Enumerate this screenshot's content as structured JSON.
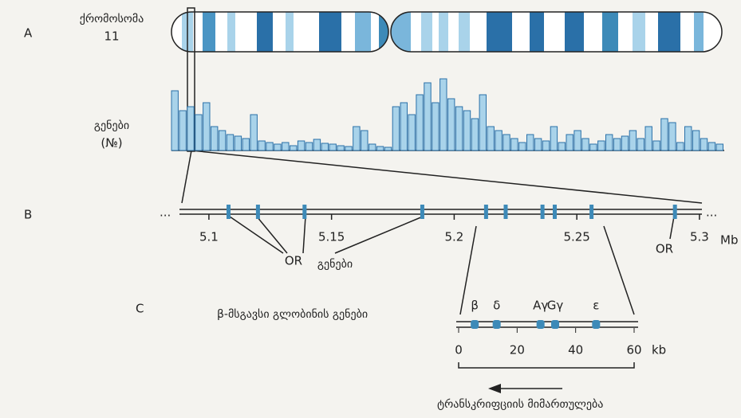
{
  "panel_labels": [
    "A",
    "B",
    "C"
  ],
  "chromosome": {
    "label_line1": "ქრომოსომა",
    "label_line2": "11"
  },
  "gene_density": {
    "label_line1": "გენები",
    "label_line2": "(№)",
    "values": [
      75,
      50,
      55,
      45,
      60,
      30,
      25,
      20,
      18,
      15,
      45,
      12,
      10,
      8,
      10,
      6,
      12,
      10,
      14,
      9,
      8,
      6,
      5,
      30,
      25,
      8,
      5,
      4,
      55,
      60,
      45,
      70,
      85,
      60,
      90,
      65,
      55,
      50,
      40,
      70,
      30,
      25,
      20,
      15,
      10,
      20,
      15,
      12,
      30,
      10,
      20,
      25,
      15,
      8,
      12,
      20,
      15,
      18,
      25,
      15,
      30,
      12,
      40,
      35,
      10,
      30,
      25,
      15,
      10,
      8
    ]
  },
  "region": {
    "xlim": [
      5.088,
      5.301
    ],
    "xticks": [
      5.1,
      5.15,
      5.2,
      5.25,
      5.3
    ],
    "unit": "Mb",
    "ellipsis": "...",
    "genes": [
      5.108,
      5.12,
      5.139,
      5.187,
      5.213,
      5.221,
      5.236,
      5.241,
      5.256,
      5.29
    ],
    "or_label": "OR",
    "genes_label": "გენები"
  },
  "globin": {
    "title": "β-მსგავსი გლობინის გენები",
    "xlim": [
      0,
      60
    ],
    "xticks": [
      0,
      20,
      40,
      60
    ],
    "unit": "kb",
    "genes": [
      5.5,
      13,
      28,
      33,
      47
    ],
    "gene_names": [
      "β",
      "δ",
      "Aγ",
      "Gγ",
      "ε"
    ],
    "direction_label": "ტრანსკრიფციის მიმართულება"
  }
}
